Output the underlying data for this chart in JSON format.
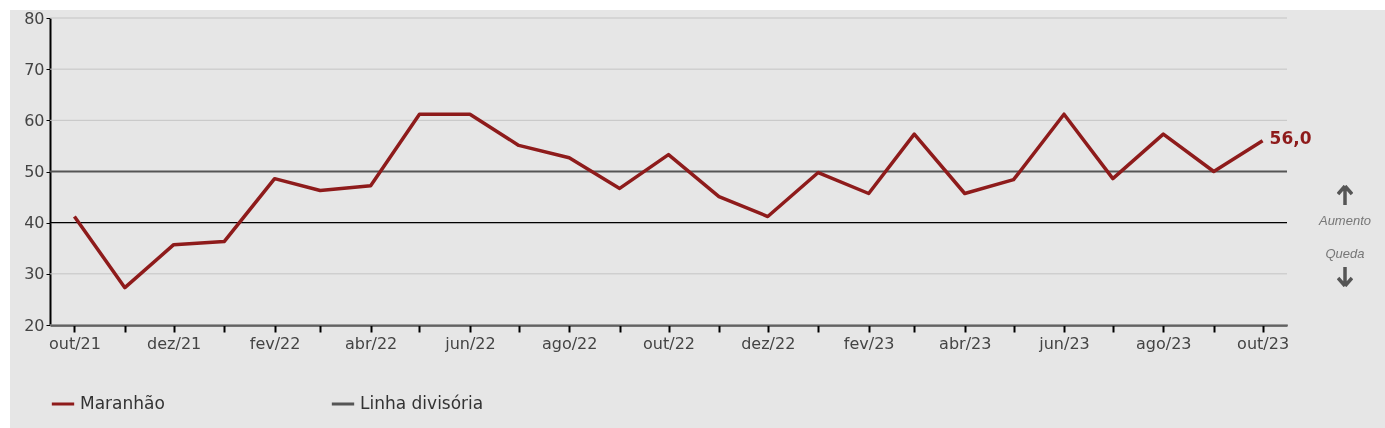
{
  "chart_data": {
    "type": "line",
    "x": [
      "2021-10",
      "2021-11",
      "2021-12",
      "2022-01",
      "2022-02",
      "2022-03",
      "2022-04",
      "2022-05",
      "2022-06",
      "2022-07",
      "2022-08",
      "2022-09",
      "2022-10",
      "2022-11",
      "2022-12",
      "2023-01",
      "2023-02",
      "2023-03",
      "2023-04",
      "2023-05",
      "2023-06",
      "2023-07",
      "2023-08",
      "2023-09",
      "2023-10"
    ],
    "series": [
      {
        "name": "Maranhão",
        "color": "#8e1b1b",
        "values": [
          41.2,
          27.3,
          35.7,
          36.3,
          48.6,
          46.3,
          47.2,
          61.2,
          61.2,
          55.1,
          52.7,
          46.7,
          53.3,
          45.1,
          41.2,
          49.8,
          45.7,
          57.3,
          45.7,
          48.4,
          61.2,
          48.6,
          57.3,
          50.0,
          56.0
        ]
      }
    ],
    "xlim": [
      "2021-09-16",
      "2023-10-16"
    ],
    "xticks": [
      {
        "value": "2021-10",
        "label": "out/21"
      },
      {
        "value": "2021-11",
        "label": null
      },
      {
        "value": "2021-12",
        "label": "dez/21"
      },
      {
        "value": "2022-01",
        "label": null
      },
      {
        "value": "2022-02",
        "label": "fev/22"
      },
      {
        "value": "2022-03",
        "label": null
      },
      {
        "value": "2022-04",
        "label": "abr/22"
      },
      {
        "value": "2022-05",
        "label": null
      },
      {
        "value": "2022-06",
        "label": "jun/22"
      },
      {
        "value": "2022-07",
        "label": null
      },
      {
        "value": "2022-08",
        "label": "ago/22"
      },
      {
        "value": "2022-09",
        "label": null
      },
      {
        "value": "2022-10",
        "label": "out/22"
      },
      {
        "value": "2022-11",
        "label": null
      },
      {
        "value": "2022-12",
        "label": "dez/22"
      },
      {
        "value": "2023-01",
        "label": null
      },
      {
        "value": "2023-02",
        "label": "fev/23"
      },
      {
        "value": "2023-03",
        "label": null
      },
      {
        "value": "2023-04",
        "label": "abr/23"
      },
      {
        "value": "2023-05",
        "label": null
      },
      {
        "value": "2023-06",
        "label": "jun/23"
      },
      {
        "value": "2023-07",
        "label": null
      },
      {
        "value": "2023-08",
        "label": "ago/23"
      },
      {
        "value": "2023-09",
        "label": null
      },
      {
        "value": "2023-10",
        "label": "out/23"
      }
    ],
    "ylim": [
      20,
      80
    ],
    "yticks": [
      20,
      30,
      40,
      50,
      60,
      70,
      80
    ],
    "grid": "y",
    "ref_lines": [
      {
        "axis": "y",
        "value": 50,
        "label": "Linha divisória",
        "color": "#555555"
      },
      {
        "axis": "y",
        "value": 40,
        "label": null,
        "color": "#000000"
      }
    ],
    "annotations": [
      {
        "text": "56,0",
        "x": "2023-10",
        "y": 56.0
      },
      "Aumento",
      "Queda"
    ],
    "legend": "bottom",
    "marker": "none",
    "line_style": "solid"
  }
}
